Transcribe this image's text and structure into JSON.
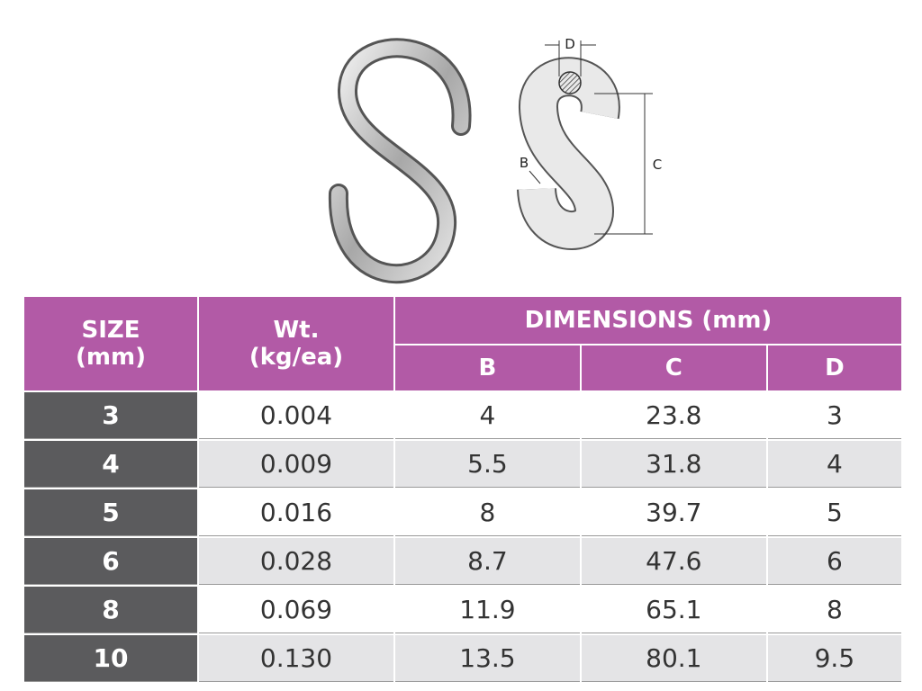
{
  "diagram": {
    "labels": {
      "d": "D",
      "b": "B",
      "c": "C"
    }
  },
  "table": {
    "header": {
      "size": [
        "SIZE",
        "(mm)"
      ],
      "weight": [
        "Wt.",
        "(kg/ea)"
      ],
      "dimensions": "DIMENSIONS (mm)",
      "sub": [
        "B",
        "C",
        "D"
      ]
    },
    "rows": [
      [
        "3",
        "0.004",
        "4",
        "23.8",
        "3"
      ],
      [
        "4",
        "0.009",
        "5.5",
        "31.8",
        "4"
      ],
      [
        "5",
        "0.016",
        "8",
        "39.7",
        "5"
      ],
      [
        "6",
        "0.028",
        "8.7",
        "47.6",
        "6"
      ],
      [
        "8",
        "0.069",
        "11.9",
        "65.1",
        "8"
      ],
      [
        "10",
        "0.130",
        "13.5",
        "80.1",
        "9.5"
      ]
    ]
  }
}
